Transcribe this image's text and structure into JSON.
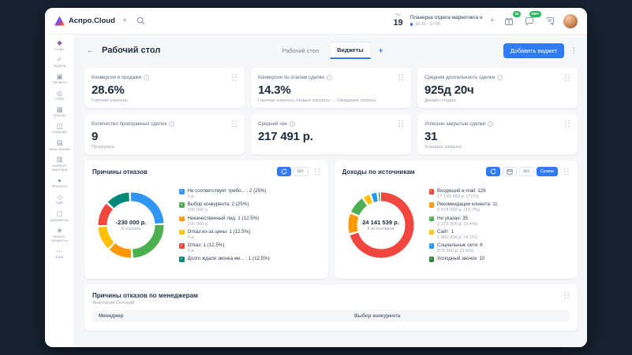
{
  "icons": {
    "plus": "+",
    "kebab": "⋮",
    "back": "←",
    "check": "✓"
  },
  "topbar": {
    "brand": "Аспро.Cloud",
    "date_day_name": "Пт",
    "date_day": "19",
    "event": {
      "title": "Планерка отдела маркетинга и",
      "time": "16:30 - 17:00"
    },
    "badges": {
      "gift": "24",
      "chat": "299+"
    }
  },
  "sidebar": {
    "items": [
      {
        "key": "start",
        "label": "Старт",
        "icon": "start-icon"
      },
      {
        "key": "tasks",
        "label": "Задачи",
        "icon": "tasks-icon"
      },
      {
        "key": "projects",
        "label": "Проекты",
        "icon": "projects-icon"
      },
      {
        "key": "crm",
        "label": "CRM",
        "icon": "crm-icon"
      },
      {
        "key": "groups",
        "label": "Группы",
        "icon": "groups-icon"
      },
      {
        "key": "team",
        "label": "Команда",
        "icon": "team-icon"
      },
      {
        "key": "knowledge",
        "label": "База знаний",
        "icon": "knowledge-icon"
      },
      {
        "key": "partner",
        "label": "Кабинет партнера",
        "icon": "partner-icon"
      },
      {
        "key": "finance",
        "label": "Финансы",
        "icon": "finance-icon"
      },
      {
        "key": "agile",
        "label": "Agile",
        "icon": "agile-icon"
      },
      {
        "key": "documents",
        "label": "Документы",
        "icon": "documents-icon"
      },
      {
        "key": "processes",
        "label": "Бизнес-процессы",
        "icon": "processes-icon"
      },
      {
        "key": "more",
        "label": "Ещё",
        "icon": "more-icon"
      }
    ]
  },
  "page": {
    "title": "Рабочий стол",
    "tabs": [
      {
        "label": "Рабочий стол",
        "active": false
      },
      {
        "label": "Виджеты",
        "active": true
      }
    ],
    "add_widget_button": "Добавить виджет"
  },
  "stats": [
    {
      "title": "Конверсия в продажи",
      "value": "28.6%",
      "caption": "Горячие клиенты",
      "info": true
    },
    {
      "title": "Конверсия по этапам сделки",
      "value": "14.3%",
      "caption": "Горячие клиенты, Новые запросы → Ожидание оплаты",
      "info": true
    },
    {
      "title": "Средняя длительность сделки",
      "value": "925д 20ч",
      "caption": "Дизайн-студия",
      "info": true
    },
    {
      "title": "Количество проигранных сделок",
      "value": "9",
      "caption": "Проиграна",
      "info": true
    },
    {
      "title": "Средний чек",
      "value": "217 491 р.",
      "caption": "",
      "info": true
    },
    {
      "title": "Успешно закрытые сделки",
      "value": "31",
      "caption": "Успешно закрыта",
      "info": true
    }
  ],
  "chart_data": [
    {
      "type": "pie",
      "title": "Причины отказов",
      "center_value": "-230 000 р.",
      "center_sub": "8 отказов",
      "legend_position": "right",
      "controls": [
        {
          "kind": "icon",
          "icon": "refresh-icon",
          "name": "refresh-toggle",
          "active": true
        },
        {
          "kind": "text",
          "label": "Шт.",
          "name": "count-toggle",
          "active": false
        }
      ],
      "slices": [
        {
          "label": "Не соответствует требо... : 2 (25%)",
          "sub": "0 р.",
          "value": 25,
          "color": "#2f96f3"
        },
        {
          "label": "Выбор конкурента: 2 (25%)",
          "sub": "100 000 р.",
          "value": 25,
          "color": "#4caf50"
        },
        {
          "label": "Некачественный лид: 1 (12.5%)",
          "sub": "100 000 р.",
          "value": 12.5,
          "color": "#ff9800"
        },
        {
          "label": "Отказ из-за цены: 1 (12.5%)",
          "sub": "0 р.",
          "value": 12.5,
          "color": "#ffc107"
        },
        {
          "label": "Отказ: 1 (12.5%)",
          "sub": "0 р.",
          "value": 12.5,
          "color": "#f1453d"
        },
        {
          "label": "Долго ждали звонка ме... : 1 (12.5%)",
          "sub": "",
          "value": 12.5,
          "color": "#00897b"
        }
      ]
    },
    {
      "type": "pie",
      "title": "Доходы по источникам",
      "center_value": "24 141 539 р.",
      "center_sub": "6 источников",
      "legend_position": "right",
      "controls": [
        {
          "kind": "icon",
          "icon": "refresh-icon",
          "name": "refresh-toggle",
          "active": true
        },
        {
          "kind": "icon",
          "icon": "calendar-icon",
          "name": "period-toggle",
          "active": false
        },
        {
          "kind": "text",
          "label": "Шт.",
          "name": "count-toggle",
          "active": false
        },
        {
          "kind": "text",
          "label": "Сумма",
          "name": "sum-toggle",
          "active": true
        }
      ],
      "slices": [
        {
          "label": "Входящий e-mail: 126",
          "sub": "17 139 999 р. (71%)",
          "value": 71,
          "color": "#f1453d"
        },
        {
          "label": "Рекомендации клиента: 11",
          "sub": "2 574 000 р. (10.7%)",
          "value": 10.7,
          "color": "#ff9800"
        },
        {
          "label": "Не указан: 35",
          "sub": "2 273 300 р. (9.4%)",
          "value": 9.4,
          "color": "#4caf50"
        },
        {
          "label": "Сайт: 1",
          "sub": "1 000 000 р. (4.1%)",
          "value": 4.1,
          "color": "#ffc107"
        },
        {
          "label": "Социальные сети: 6",
          "sub": "879 350 р. (3.6%)",
          "value": 3.6,
          "color": "#2196f3"
        },
        {
          "label": "Холодный звонок: 10",
          "sub": "",
          "value": 1.2,
          "color": "#2e7d32"
        }
      ]
    }
  ],
  "managers_card": {
    "title": "Причины отказов по менеджерам",
    "subtitle": "Анастасия Солонай",
    "columns": [
      "Менеджер",
      "Выбор конкурента"
    ]
  }
}
